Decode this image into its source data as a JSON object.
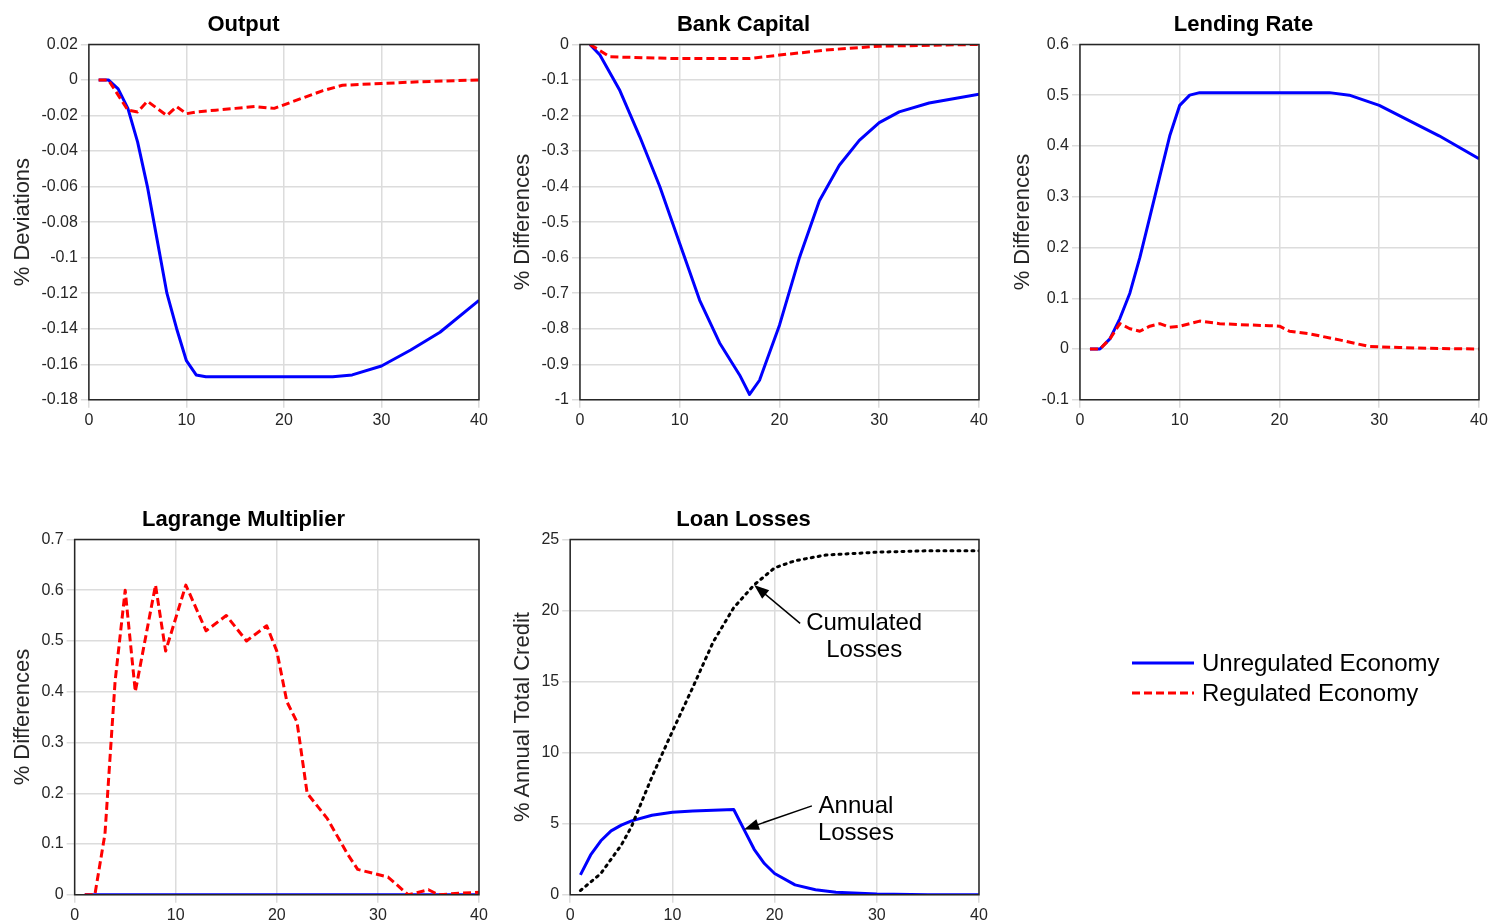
{
  "chart_data": [
    {
      "type": "line",
      "title": "Output",
      "ylabel": "% Deviations",
      "xlim": [
        0,
        40
      ],
      "xticks": [
        0,
        10,
        20,
        30,
        40
      ],
      "ylim": [
        -0.18,
        0.02
      ],
      "yticks": [
        -0.18,
        -0.16,
        -0.14,
        -0.12,
        -0.1,
        -0.08,
        -0.06,
        -0.04,
        -0.02,
        0,
        0.02
      ],
      "grid": true,
      "marker": "none",
      "legend": "right",
      "series": [
        {
          "name": "Unregulated Economy",
          "color": "#0000ff",
          "line_style": "solid",
          "x": [
            1,
            2,
            3,
            4,
            5,
            6,
            7,
            8,
            9,
            10,
            11,
            12,
            20,
            25,
            27,
            30,
            33,
            36,
            40
          ],
          "values": [
            0,
            0,
            -0.005,
            -0.016,
            -0.035,
            -0.06,
            -0.09,
            -0.12,
            -0.14,
            -0.158,
            -0.166,
            -0.167,
            -0.167,
            -0.167,
            -0.166,
            -0.161,
            -0.152,
            -0.142,
            -0.124
          ]
        },
        {
          "name": "Regulated Economy",
          "color": "#ff0000",
          "line_style": "dashed",
          "x": [
            1,
            2,
            4,
            5,
            6,
            7,
            8,
            9,
            10,
            11,
            13,
            15,
            17,
            19,
            20,
            22,
            24,
            26,
            30,
            34,
            40
          ],
          "values": [
            0,
            0,
            -0.017,
            -0.018,
            -0.012,
            -0.016,
            -0.02,
            -0.015,
            -0.019,
            -0.018,
            -0.017,
            -0.016,
            -0.015,
            -0.016,
            -0.014,
            -0.01,
            -0.006,
            -0.003,
            -0.002,
            -0.001,
            0
          ]
        }
      ]
    },
    {
      "type": "line",
      "title": "Bank Capital",
      "ylabel": "% Differences",
      "xlim": [
        0,
        40
      ],
      "xticks": [
        0,
        10,
        20,
        30,
        40
      ],
      "ylim": [
        -1,
        0
      ],
      "yticks": [
        -1,
        -0.9,
        -0.8,
        -0.7,
        -0.6,
        -0.5,
        -0.4,
        -0.3,
        -0.2,
        -0.1,
        0
      ],
      "grid": true,
      "marker": "none",
      "series": [
        {
          "color": "#0000ff",
          "line_style": "solid",
          "x": [
            1,
            2,
            4,
            6,
            8,
            10,
            12,
            14,
            16,
            17,
            18,
            20,
            22,
            24,
            26,
            28,
            30,
            32,
            35,
            38,
            40
          ],
          "values": [
            0,
            -0.03,
            -0.13,
            -0.26,
            -0.4,
            -0.56,
            -0.72,
            -0.84,
            -0.93,
            -0.985,
            -0.945,
            -0.79,
            -0.6,
            -0.44,
            -0.34,
            -0.27,
            -0.22,
            -0.19,
            -0.165,
            -0.15,
            -0.14
          ]
        },
        {
          "color": "#ff0000",
          "line_style": "dashed",
          "x": [
            1,
            3,
            10,
            17,
            20,
            25,
            30,
            40
          ],
          "values": [
            0,
            -0.035,
            -0.04,
            -0.04,
            -0.03,
            -0.015,
            -0.005,
            0
          ]
        }
      ]
    },
    {
      "type": "line",
      "title": "Lending Rate",
      "ylabel": "% Differences",
      "xlim": [
        0,
        40
      ],
      "xticks": [
        0,
        10,
        20,
        30,
        40
      ],
      "ylim": [
        -0.1,
        0.6
      ],
      "yticks": [
        -0.1,
        0,
        0.1,
        0.2,
        0.3,
        0.4,
        0.5,
        0.6
      ],
      "grid": true,
      "marker": "none",
      "series": [
        {
          "color": "#0000ff",
          "line_style": "solid",
          "x": [
            1,
            2,
            3,
            4,
            5,
            6,
            7,
            8,
            9,
            10,
            11,
            12,
            25,
            27,
            30,
            33,
            36,
            40
          ],
          "values": [
            0,
            0,
            0.02,
            0.06,
            0.11,
            0.18,
            0.26,
            0.34,
            0.42,
            0.48,
            0.5,
            0.505,
            0.505,
            0.5,
            0.48,
            0.45,
            0.42,
            0.375
          ]
        },
        {
          "color": "#ff0000",
          "line_style": "dashed",
          "x": [
            1,
            2,
            3,
            4,
            5,
            6,
            7,
            8,
            9,
            10,
            12,
            14,
            16,
            19,
            20,
            21,
            23,
            26,
            29,
            32,
            36,
            40
          ],
          "values": [
            0,
            0,
            0.02,
            0.05,
            0.04,
            0.035,
            0.045,
            0.05,
            0.043,
            0.045,
            0.055,
            0.05,
            0.048,
            0.046,
            0.045,
            0.035,
            0.03,
            0.018,
            0.005,
            0.003,
            0.001,
            0
          ]
        }
      ]
    },
    {
      "type": "line",
      "title": "Lagrange Multiplier",
      "ylabel": "% Differences",
      "xlim": [
        0,
        40
      ],
      "xticks": [
        0,
        10,
        20,
        30,
        40
      ],
      "ylim": [
        0,
        0.7
      ],
      "yticks": [
        0,
        0.1,
        0.2,
        0.3,
        0.4,
        0.5,
        0.6,
        0.7
      ],
      "grid": true,
      "marker": "none",
      "series": [
        {
          "color": "#0000ff",
          "line_style": "solid",
          "x": [
            1,
            40
          ],
          "values": [
            0,
            0
          ]
        },
        {
          "color": "#ff0000",
          "line_style": "dashed",
          "x": [
            1,
            2,
            3,
            4,
            5,
            6,
            8,
            9,
            11,
            13,
            15,
            17,
            19,
            20,
            21,
            22,
            23,
            25,
            27,
            28,
            30,
            31,
            33,
            35,
            36,
            38,
            40
          ],
          "values": [
            0,
            0,
            0.12,
            0.42,
            0.6,
            0.4,
            0.61,
            0.48,
            0.61,
            0.52,
            0.55,
            0.5,
            0.53,
            0.48,
            0.38,
            0.34,
            0.2,
            0.15,
            0.08,
            0.05,
            0.04,
            0.035,
            0,
            0.01,
            0,
            0.003,
            0.005
          ]
        }
      ]
    },
    {
      "type": "line",
      "title": "Loan Losses",
      "ylabel": "% Annual Total Credit",
      "xlim": [
        0,
        40
      ],
      "xticks": [
        0,
        10,
        20,
        30,
        40
      ],
      "ylim": [
        0,
        25
      ],
      "yticks": [
        0,
        5,
        10,
        15,
        20,
        25
      ],
      "grid": true,
      "marker": "none",
      "annotations": [
        {
          "text": "Cumulated Losses",
          "x": 18,
          "y": 21.8
        },
        {
          "text": "Annual Losses",
          "x": 17,
          "y": 4.6
        }
      ],
      "series": [
        {
          "color": "#0000ff",
          "line_style": "solid",
          "x": [
            1,
            2,
            3,
            4,
            5,
            6,
            8,
            10,
            12,
            16,
            17,
            18,
            19,
            20,
            22,
            24,
            26,
            30,
            35,
            40
          ],
          "values": [
            1.4,
            2.8,
            3.8,
            4.5,
            4.9,
            5.2,
            5.6,
            5.8,
            5.9,
            6,
            4.6,
            3.2,
            2.2,
            1.5,
            0.7,
            0.35,
            0.18,
            0.05,
            0.01,
            0
          ]
        },
        {
          "color": "#000000",
          "line_style": "dotted",
          "x": [
            1,
            3,
            5,
            6,
            8,
            10,
            12,
            14,
            16,
            18,
            20,
            22,
            25,
            30,
            35,
            40
          ],
          "values": [
            0.3,
            1.5,
            3.5,
            4.8,
            8.3,
            11.5,
            14.6,
            17.8,
            20.2,
            21.8,
            23,
            23.5,
            23.9,
            24.1,
            24.2,
            24.2
          ]
        }
      ]
    }
  ]
}
